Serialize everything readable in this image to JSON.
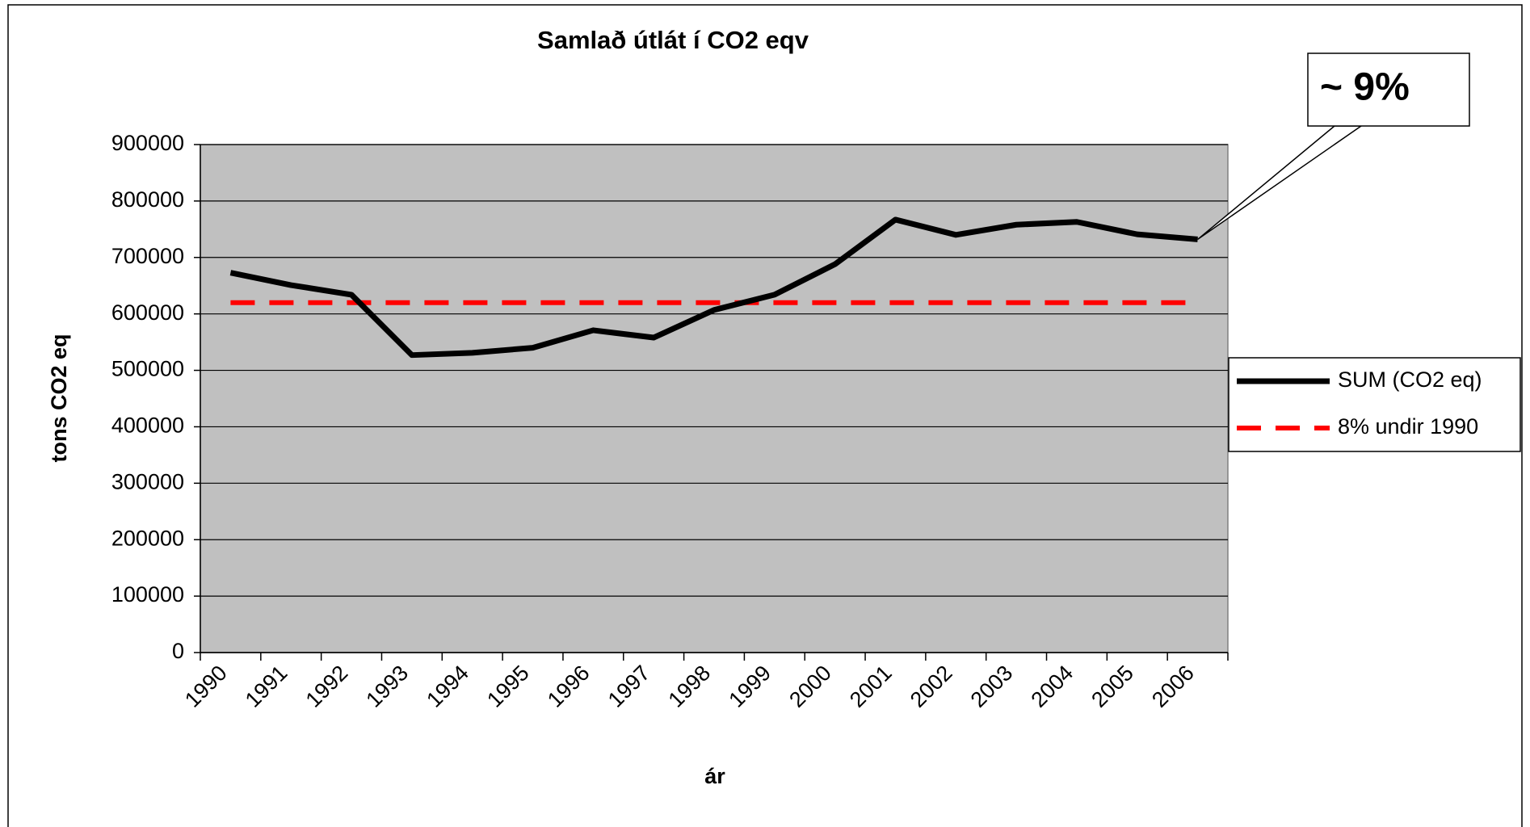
{
  "chart_data": {
    "type": "line",
    "title": "Samlað útlát í CO2 eqv",
    "x_label": "ár",
    "y_label": "tons CO2 eq",
    "annotation": "~ 9%",
    "categories": [
      "1990",
      "1991",
      "1992",
      "1993",
      "1994",
      "1995",
      "1996",
      "1997",
      "1998",
      "1999",
      "2000",
      "2001",
      "2002",
      "2003",
      "2004",
      "2005",
      "2006"
    ],
    "series": [
      {
        "name": "SUM (CO2 eq)",
        "color": "#000000",
        "dashed": false,
        "values": [
          673000,
          651000,
          634000,
          527000,
          531000,
          540000,
          571000,
          558000,
          607000,
          634000,
          688000,
          767000,
          740000,
          758000,
          763000,
          741000,
          732000
        ]
      },
      {
        "name": "8% undir 1990",
        "color": "#ff0000",
        "dashed": true,
        "values": [
          620000,
          620000,
          620000,
          620000,
          620000,
          620000,
          620000,
          620000,
          620000,
          620000,
          620000,
          620000,
          620000,
          620000,
          620000,
          620000,
          620000
        ]
      }
    ],
    "ylim": [
      0,
      900000
    ],
    "yticks": [
      0,
      100000,
      200000,
      300000,
      400000,
      500000,
      600000,
      700000,
      800000,
      900000
    ],
    "grid": true,
    "legend": "right"
  }
}
